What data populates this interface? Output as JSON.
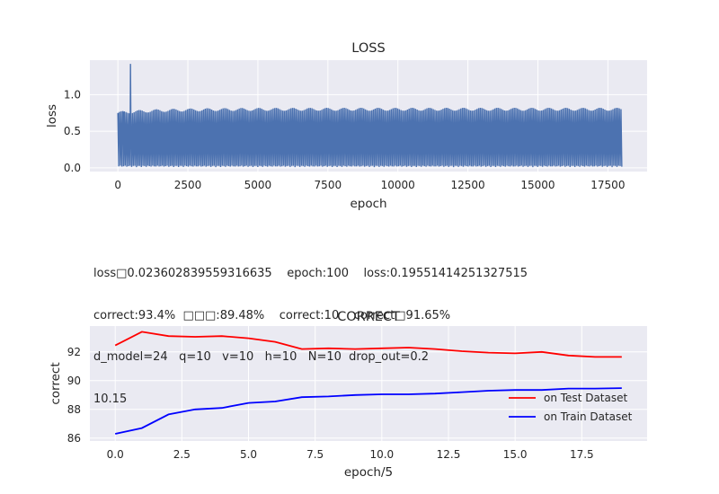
{
  "info_lines": [
    "loss□0.023602839559316635    epoch:100    loss:0.19551414251327515",
    "correct:93.4%  □□□:89.48%    correct:10    correct□91.65%",
    "d_model=24   q=10   v=10   h=10   N=10  drop_out=0.2",
    "10.15"
  ],
  "chart_data": [
    {
      "type": "line",
      "title": "LOSS",
      "xlabel": "epoch",
      "ylabel": "loss",
      "xlim": [
        -1000,
        18900
      ],
      "ylim": [
        -0.05,
        1.47
      ],
      "xticks": [
        0,
        2500,
        5000,
        7500,
        10000,
        12500,
        15000,
        17500
      ],
      "yticks": [
        0.0,
        0.5,
        1.0
      ],
      "ytick_labels": [
        "0.0",
        "0.5",
        "1.0"
      ],
      "grid": true,
      "series": [
        {
          "color": "#4c72b0",
          "x_range": [
            0,
            18000
          ],
          "oscillation_min": 0.01,
          "oscillation_max": 0.8,
          "spikes": [
            {
              "x": 30,
              "y": 0.72
            },
            {
              "x": 200,
              "y": 0.74
            },
            {
              "x": 450,
              "y": 1.42
            }
          ]
        }
      ]
    },
    {
      "type": "line",
      "title": "CORRECT",
      "xlabel": "epoch/5",
      "ylabel": "correct",
      "xlim": [
        -0.95,
        19.95
      ],
      "ylim": [
        85.8,
        93.8
      ],
      "xticks": [
        0.0,
        2.5,
        5.0,
        7.5,
        10.0,
        12.5,
        15.0,
        17.5
      ],
      "xtick_labels": [
        "0.0",
        "2.5",
        "5.0",
        "7.5",
        "10.0",
        "12.5",
        "15.0",
        "17.5"
      ],
      "yticks": [
        86,
        88,
        90,
        92
      ],
      "grid": true,
      "legend_position": "lower-right",
      "x": [
        0,
        1,
        2,
        3,
        4,
        5,
        6,
        7,
        8,
        9,
        10,
        11,
        12,
        13,
        14,
        15,
        16,
        17,
        18,
        19
      ],
      "series": [
        {
          "name": "on Test Dataset",
          "color": "#ff0000",
          "values": [
            92.45,
            93.4,
            93.1,
            93.05,
            93.1,
            92.95,
            92.7,
            92.2,
            92.25,
            92.2,
            92.25,
            92.3,
            92.2,
            92.05,
            91.95,
            91.9,
            92.0,
            91.75,
            91.65,
            91.65
          ]
        },
        {
          "name": "on Train Dataset",
          "color": "#0000ff",
          "values": [
            86.3,
            86.7,
            87.65,
            88.0,
            88.1,
            88.45,
            88.55,
            88.85,
            88.9,
            89.0,
            89.05,
            89.05,
            89.1,
            89.2,
            89.3,
            89.35,
            89.35,
            89.45,
            89.45,
            89.48
          ]
        }
      ]
    }
  ]
}
